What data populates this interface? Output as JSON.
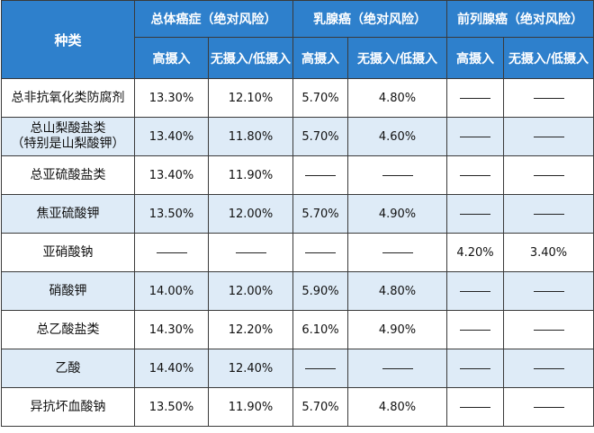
{
  "header": {
    "kind": "种类",
    "groups": [
      "总体癌症（绝对风险）",
      "乳腺癌（绝对风险）",
      "前列腺癌（绝对风险）"
    ],
    "high": "高摄入",
    "low": "无摄入/低摄入"
  },
  "rows": [
    {
      "name": "总非抗氧化类防腐剂",
      "v": [
        "13.30%",
        "12.10%",
        "5.70%",
        "4.80%",
        "——",
        "——"
      ]
    },
    {
      "name": "总山梨酸盐类\n（特别是山梨酸钾）",
      "v": [
        "13.40%",
        "11.80%",
        "5.70%",
        "4.60%",
        "——",
        "——"
      ]
    },
    {
      "name": "总亚硫酸盐类",
      "v": [
        "13.40%",
        "11.90%",
        "——",
        "——",
        "——",
        "——"
      ]
    },
    {
      "name": "焦亚硫酸钾",
      "v": [
        "13.50%",
        "12.00%",
        "5.70%",
        "4.90%",
        "——",
        "——"
      ]
    },
    {
      "name": "亚硝酸钠",
      "v": [
        "——",
        "——",
        "——",
        "——",
        "4.20%",
        "3.40%"
      ]
    },
    {
      "name": "硝酸钾",
      "v": [
        "14.00%",
        "12.00%",
        "5.90%",
        "4.80%",
        "——",
        "——"
      ]
    },
    {
      "name": "总乙酸盐类",
      "v": [
        "14.30%",
        "12.20%",
        "6.10%",
        "4.90%",
        "——",
        "——"
      ]
    },
    {
      "name": "乙酸",
      "v": [
        "14.40%",
        "12.40%",
        "——",
        "——",
        "——",
        "——"
      ]
    },
    {
      "name": "异抗坏血酸钠",
      "v": [
        "13.50%",
        "11.90%",
        "5.70%",
        "4.80%",
        "——",
        "——"
      ]
    }
  ],
  "colors": {
    "header_bg": "#2e80cc",
    "alt_row_bg": "#deebf7",
    "border": "#3a3a3a"
  }
}
